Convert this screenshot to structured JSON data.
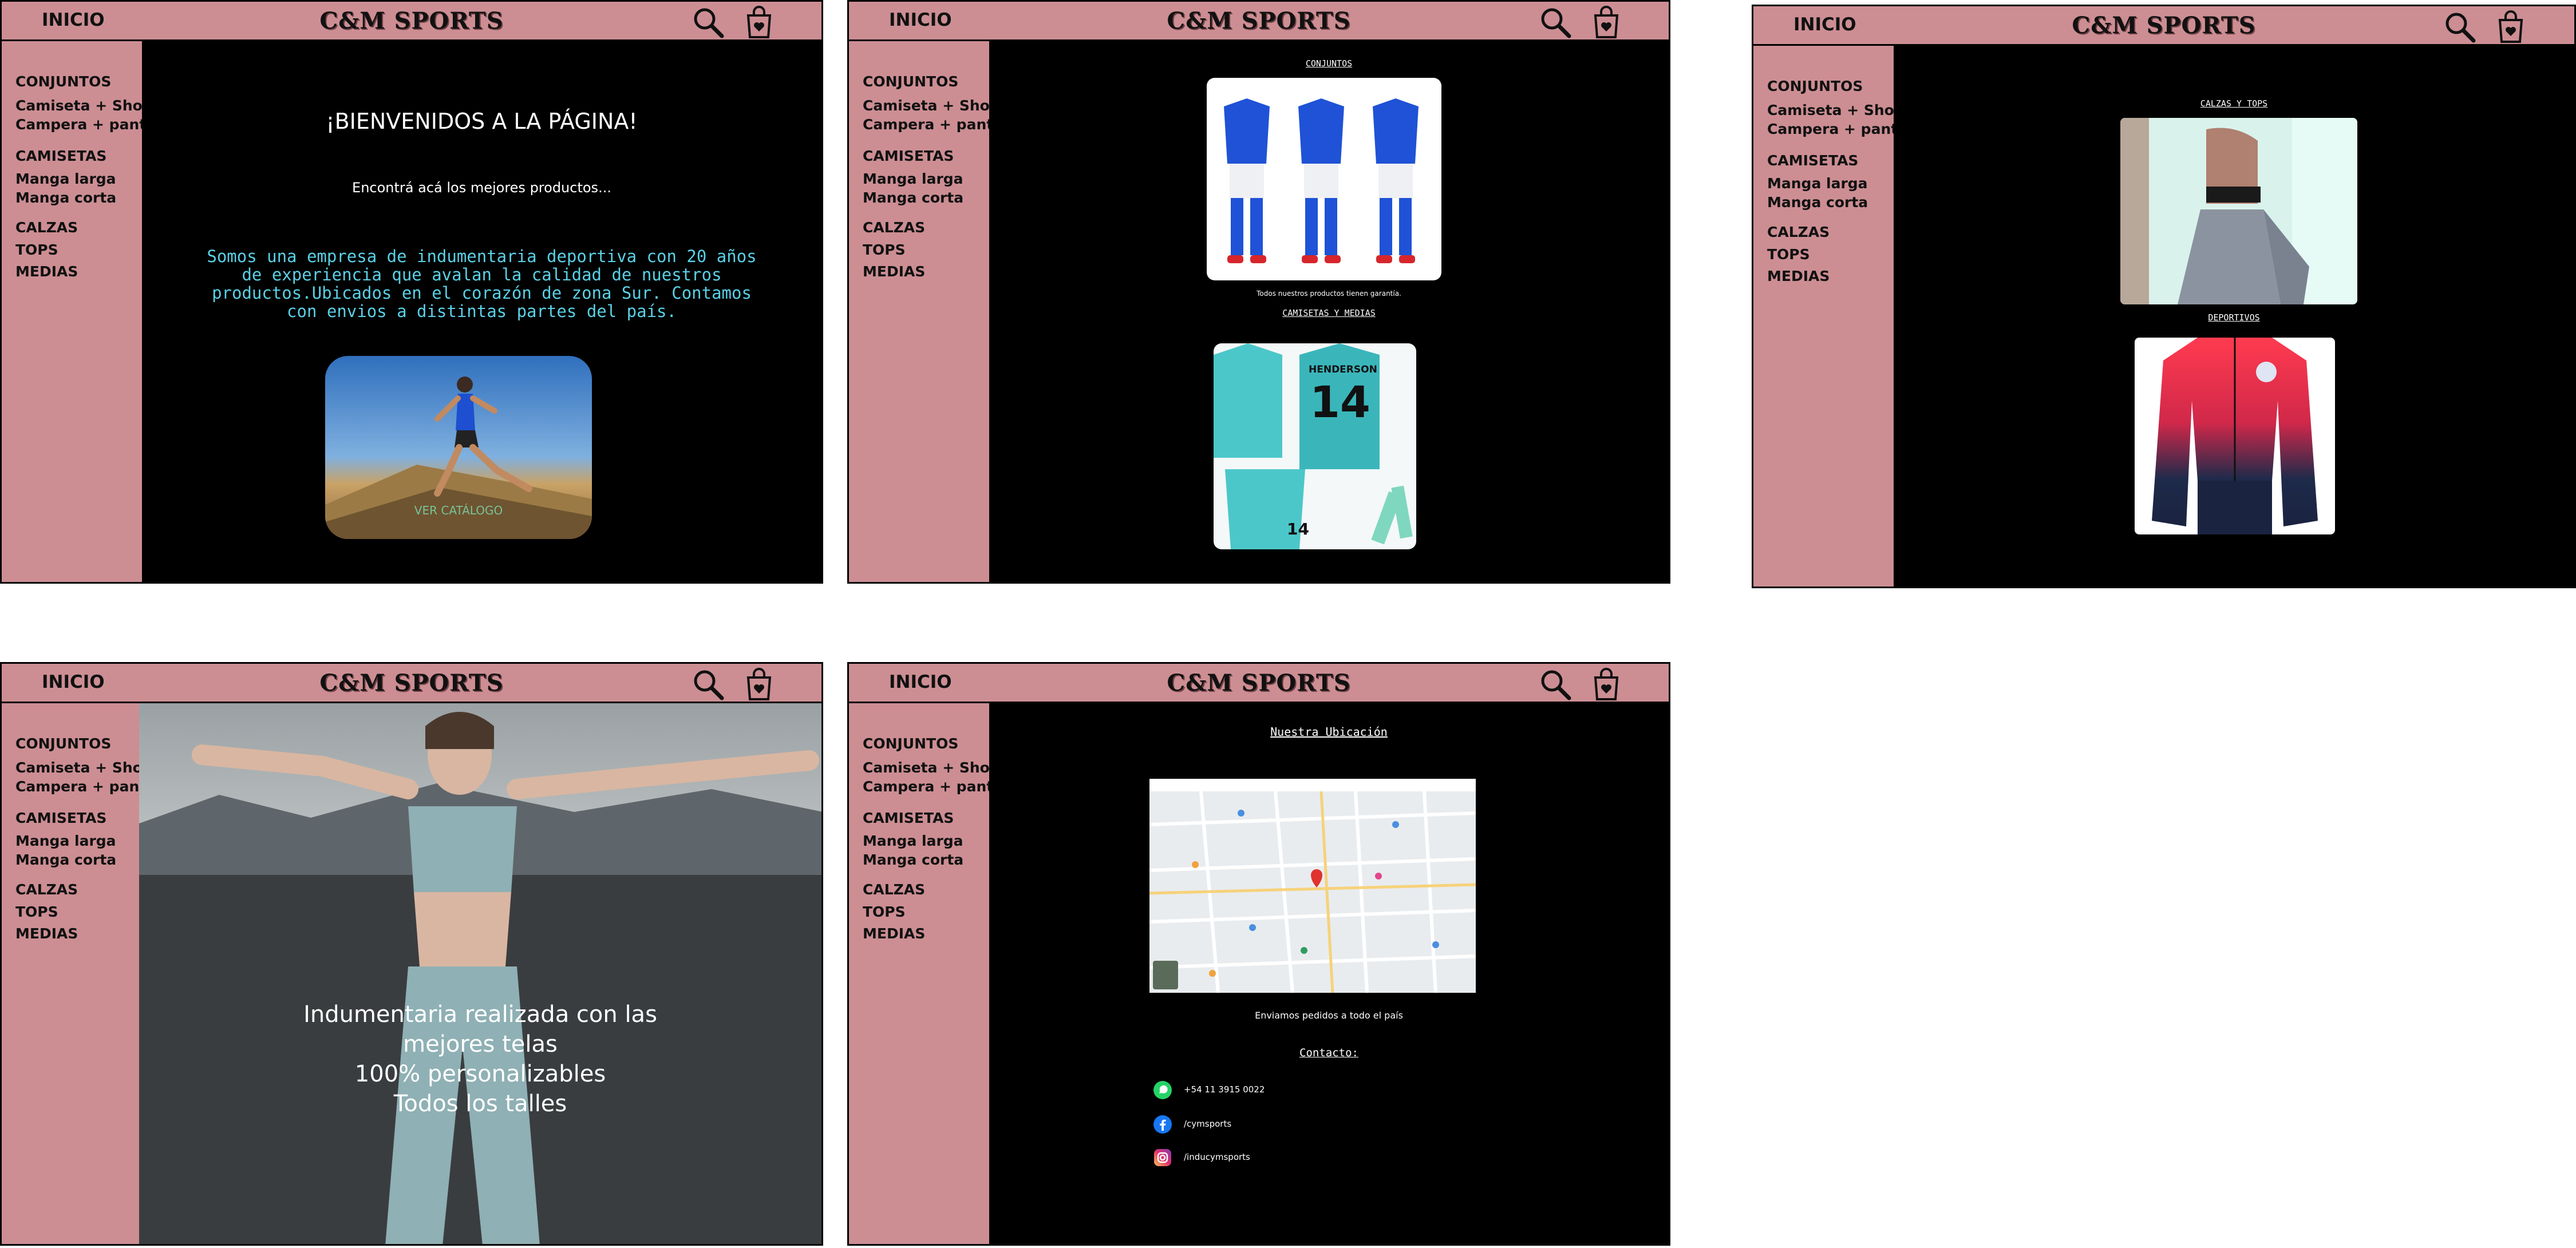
{
  "header": {
    "inicio_label": "INICIO",
    "brand": "C&M SPORTS"
  },
  "sidebar": {
    "conjuntos": "CONJUNTOS",
    "camiseta_short": "Camiseta + Short",
    "campera_pant": "Campera + pant",
    "camisetas": "CAMISETAS",
    "manga_larga": "Manga larga",
    "manga_corta": "Manga corta",
    "calzas": "CALZAS",
    "tops": "TOPS",
    "medias": "MEDIAS"
  },
  "home": {
    "welcome": "¡BIENVENIDOS A LA PÁGINA!",
    "subtitle": "Encontrá acá los mejores productos...",
    "about": "Somos una empresa de indumentaria deportiva con 20 años de experiencia que avalan la calidad de nuestros productos.Ubicados en el corazón de zona Sur. Contamos con envios a distintas partes del país.",
    "catalog_button": "VER CATÁLOGO"
  },
  "catalog1": {
    "section1": "CONJUNTOS",
    "guarantee": "Todos nuestros productos tienen garantía.",
    "section2": "CAMISETAS Y MEDIAS",
    "jersey_name": "HENDERSON",
    "jersey_number": "14",
    "shorts_number": "14"
  },
  "catalog2": {
    "section1": "CALZAS Y TOPS",
    "section2": "DEPORTIVOS"
  },
  "features": {
    "line1": "Indumentaria realizada con las",
    "line2": "mejores telas",
    "line3": "100% personalizables",
    "line4": "Todos los talles"
  },
  "contact": {
    "location_title": "Nuestra Ubicación",
    "shipping": "Enviamos pedidos a todo el país",
    "contact_title": "Contacto:",
    "whatsapp": "+54 11 3915 0022",
    "facebook": "/cymsports",
    "instagram": "/inducymsports"
  },
  "colors": {
    "accent": "#cc8e93",
    "text_cyan": "#5ad1e6",
    "button_green": "#79c29a"
  }
}
